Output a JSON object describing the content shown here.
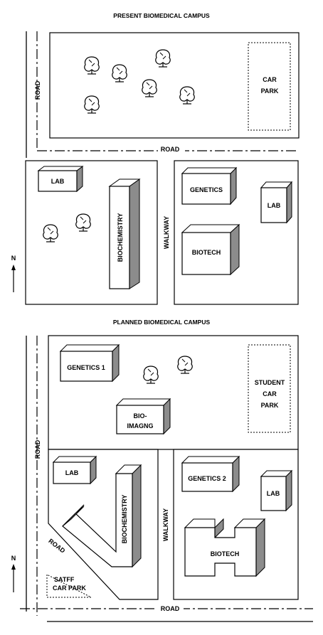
{
  "maps": {
    "present": {
      "title": "PRESENT BIOMEDICAL CAMPUS",
      "road_west": "ROAD",
      "road_south": "ROAD",
      "car_park": [
        "CAR",
        "PARK"
      ],
      "lab": "LAB",
      "biochemistry": "BIOCHEMISTRY",
      "walkway": "WALKWAY",
      "genetics": "GENETICS",
      "lab_east": "LAB",
      "biotech": "BIOTECH",
      "north": "N"
    },
    "planned": {
      "title": "PLANNED BIOMEDICAL CAMPUS",
      "genetics_1": "GENETICS 1",
      "student_car_park": [
        "STUDENT",
        "CAR",
        "PARK"
      ],
      "bio_imaging": [
        "BIO-",
        "IMAGNG"
      ],
      "road_west": "ROAD",
      "lab": "LAB",
      "biochemistry": "BIOCHEMISTRY",
      "walkway": "WALKWAY",
      "genetics_2": "GENETICS 2",
      "lab_east": "LAB",
      "biotech": "BIOTECH",
      "road_diagonal": "ROAD",
      "staff_car_park": [
        "SATFF",
        "CAR PARK"
      ],
      "road_south": "ROAD",
      "north": "N"
    }
  },
  "colors": {
    "shade": "#8c8c8c",
    "ink": "#000000",
    "paper": "#ffffff"
  }
}
